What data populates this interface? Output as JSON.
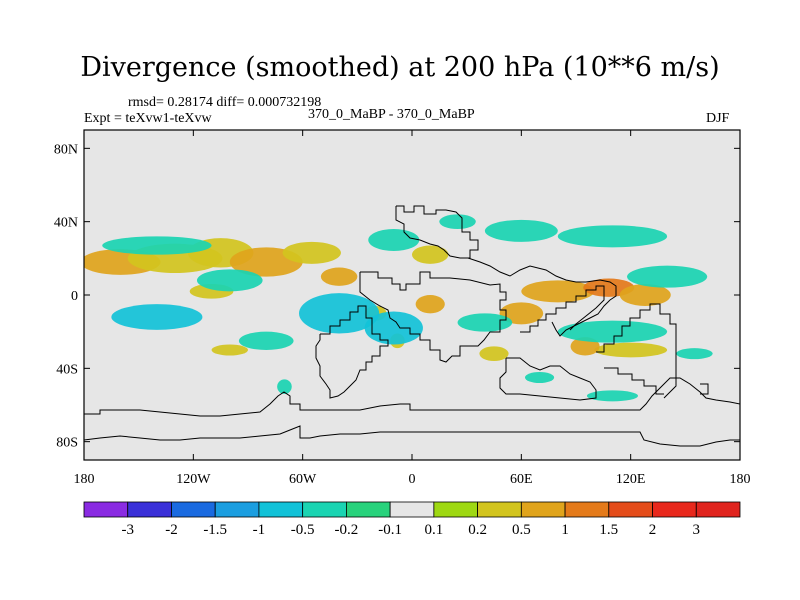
{
  "title": "Divergence (smoothed) at 200 hPa (10**6 m/s)",
  "stats_text": "rmsd= 0.28174 diff= 0.000732198",
  "experiment_text": "Expt = teXvw1-teXvw",
  "case_text": "370_0_MaBP - 370_0_MaBP",
  "season_text": "DJF",
  "chart_data": {
    "type": "heatmap",
    "title": "Divergence (smoothed) at 200 hPa (10**6 m/s)",
    "variable": "Divergence (smoothed)",
    "level": "200 hPa",
    "units": "10**6 m/s",
    "xlim": [
      -180,
      180
    ],
    "ylim": [
      -90,
      90
    ],
    "x_ticks": [
      {
        "value": -180,
        "label": "180"
      },
      {
        "value": -120,
        "label": "120W"
      },
      {
        "value": -60,
        "label": "60W"
      },
      {
        "value": 0,
        "label": "0"
      },
      {
        "value": 60,
        "label": "60E"
      },
      {
        "value": 120,
        "label": "120E"
      },
      {
        "value": 180,
        "label": "180"
      }
    ],
    "y_ticks": [
      {
        "value": 80,
        "label": "80N"
      },
      {
        "value": 40,
        "label": "40N"
      },
      {
        "value": 0,
        "label": "0"
      },
      {
        "value": -40,
        "label": "40S"
      },
      {
        "value": -80,
        "label": "80S"
      }
    ],
    "colorbar": {
      "levels": [
        "-3",
        "-2",
        "-1.5",
        "-1",
        "-0.5",
        "-0.2",
        "-0.1",
        "0.1",
        "0.2",
        "0.5",
        "1",
        "1.5",
        "2",
        "3"
      ],
      "colors": [
        "#8a2be2",
        "#3a30d8",
        "#1a6ae0",
        "#1b9ee0",
        "#12c2d8",
        "#1ad4b2",
        "#28d27c",
        "#e6e6e6",
        "#9ed812",
        "#d2c41e",
        "#e0a41c",
        "#e47a1a",
        "#e44c1a",
        "#e8281c",
        "#e0241e"
      ]
    },
    "features": [
      {
        "value": 0.5,
        "cx": -160,
        "cy": 18,
        "rx": 22,
        "ry": 7
      },
      {
        "value": 0.3,
        "cx": -130,
        "cy": 20,
        "rx": 26,
        "ry": 8
      },
      {
        "value": 0.3,
        "cx": -105,
        "cy": 23,
        "rx": 18,
        "ry": 8
      },
      {
        "value": 0.6,
        "cx": -80,
        "cy": 18,
        "rx": 20,
        "ry": 8
      },
      {
        "value": 0.4,
        "cx": -55,
        "cy": 23,
        "rx": 16,
        "ry": 6
      },
      {
        "value": 0.5,
        "cx": -40,
        "cy": 10,
        "rx": 10,
        "ry": 5
      },
      {
        "value": 0.4,
        "cx": -110,
        "cy": 2,
        "rx": 12,
        "ry": 4
      },
      {
        "value": 0.7,
        "cx": 80,
        "cy": 2,
        "rx": 20,
        "ry": 6
      },
      {
        "value": 1.2,
        "cx": 108,
        "cy": 4,
        "rx": 14,
        "ry": 5
      },
      {
        "value": 0.5,
        "cx": 128,
        "cy": 0,
        "rx": 14,
        "ry": 6
      },
      {
        "value": 0.5,
        "cx": 60,
        "cy": -10,
        "rx": 12,
        "ry": 6
      },
      {
        "value": 0.4,
        "cx": 10,
        "cy": 22,
        "rx": 10,
        "ry": 5
      },
      {
        "value": 0.5,
        "cx": 10,
        "cy": -5,
        "rx": 8,
        "ry": 5
      },
      {
        "value": 0.4,
        "cx": -20,
        "cy": -10,
        "rx": 6,
        "ry": 4
      },
      {
        "value": 0.3,
        "cx": -100,
        "cy": -30,
        "rx": 10,
        "ry": 3
      },
      {
        "value": 0.4,
        "cx": 120,
        "cy": -30,
        "rx": 20,
        "ry": 4
      },
      {
        "value": 0.6,
        "cx": 95,
        "cy": -28,
        "rx": 8,
        "ry": 5
      },
      {
        "value": 0.3,
        "cx": 45,
        "cy": -32,
        "rx": 8,
        "ry": 4
      },
      {
        "value": 0.3,
        "cx": -8,
        "cy": -25,
        "rx": 4,
        "ry": 4
      },
      {
        "value": -0.4,
        "cx": -10,
        "cy": 30,
        "rx": 14,
        "ry": 6
      },
      {
        "value": -0.3,
        "cx": 60,
        "cy": 35,
        "rx": 20,
        "ry": 6
      },
      {
        "value": -0.4,
        "cx": 110,
        "cy": 32,
        "rx": 30,
        "ry": 6
      },
      {
        "value": -0.3,
        "cx": 25,
        "cy": 40,
        "rx": 10,
        "ry": 4
      },
      {
        "value": -0.5,
        "cx": -140,
        "cy": 27,
        "rx": 30,
        "ry": 5
      },
      {
        "value": -0.4,
        "cx": -100,
        "cy": 8,
        "rx": 18,
        "ry": 6
      },
      {
        "value": -0.6,
        "cx": -140,
        "cy": -12,
        "rx": 25,
        "ry": 7
      },
      {
        "value": -0.9,
        "cx": -40,
        "cy": -10,
        "rx": 22,
        "ry": 11
      },
      {
        "value": -0.6,
        "cx": -10,
        "cy": -18,
        "rx": 16,
        "ry": 9
      },
      {
        "value": -0.3,
        "cx": -80,
        "cy": -25,
        "rx": 15,
        "ry": 5
      },
      {
        "value": -0.3,
        "cx": 40,
        "cy": -15,
        "rx": 15,
        "ry": 5
      },
      {
        "value": -0.4,
        "cx": 110,
        "cy": -20,
        "rx": 30,
        "ry": 6
      },
      {
        "value": -0.3,
        "cx": 140,
        "cy": 10,
        "rx": 22,
        "ry": 6
      },
      {
        "value": -0.3,
        "cx": -70,
        "cy": -50,
        "rx": 4,
        "ry": 4
      },
      {
        "value": -0.3,
        "cx": 70,
        "cy": -45,
        "rx": 8,
        "ry": 3
      },
      {
        "value": -0.3,
        "cx": 110,
        "cy": -55,
        "rx": 14,
        "ry": 3
      },
      {
        "value": -0.3,
        "cx": 155,
        "cy": -32,
        "rx": 10,
        "ry": 3
      }
    ]
  }
}
